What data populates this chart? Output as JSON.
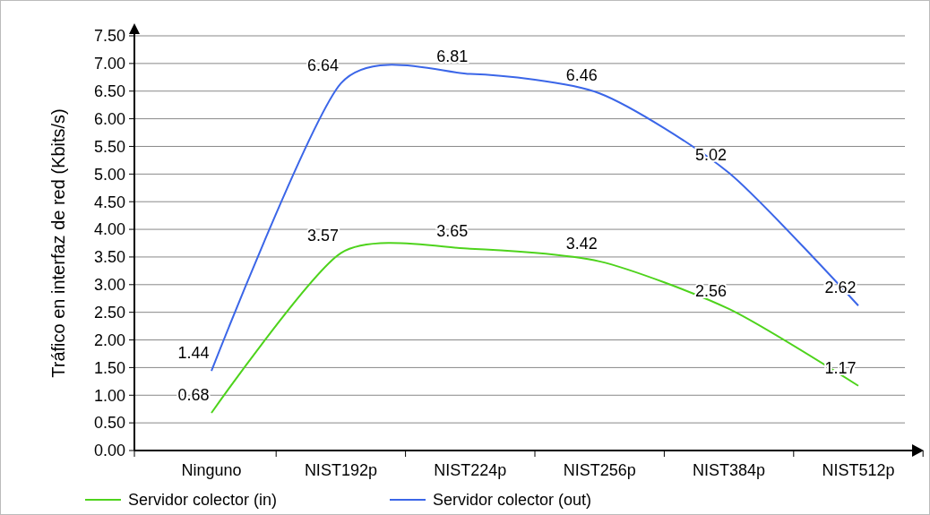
{
  "chart_data": {
    "type": "line",
    "ylabel": "Tráfico en interfaz de red  (Kbits/s)",
    "categories": [
      "Ninguno",
      "NIST192p",
      "NIST224p",
      "NIST256p",
      "NIST384p",
      "NIST512p"
    ],
    "series": [
      {
        "name": "Servidor colector (in)",
        "color": "#4ed31c",
        "values": [
          0.68,
          3.57,
          3.65,
          3.42,
          2.56,
          1.17
        ]
      },
      {
        "name": "Servidor colector (out)",
        "color": "#3b66e8",
        "values": [
          1.44,
          6.64,
          6.81,
          6.46,
          5.02,
          2.62
        ]
      }
    ],
    "ylim": [
      0,
      7.5
    ],
    "yticks": [
      "0.00",
      "0.50",
      "1.00",
      "1.50",
      "2.00",
      "2.50",
      "3.00",
      "3.50",
      "4.00",
      "4.50",
      "5.00",
      "5.50",
      "6.00",
      "6.50",
      "7.00",
      "7.50"
    ],
    "grid": "y",
    "legend": "bottom",
    "marker": "none",
    "line_style": "solid",
    "data_labels": true
  }
}
